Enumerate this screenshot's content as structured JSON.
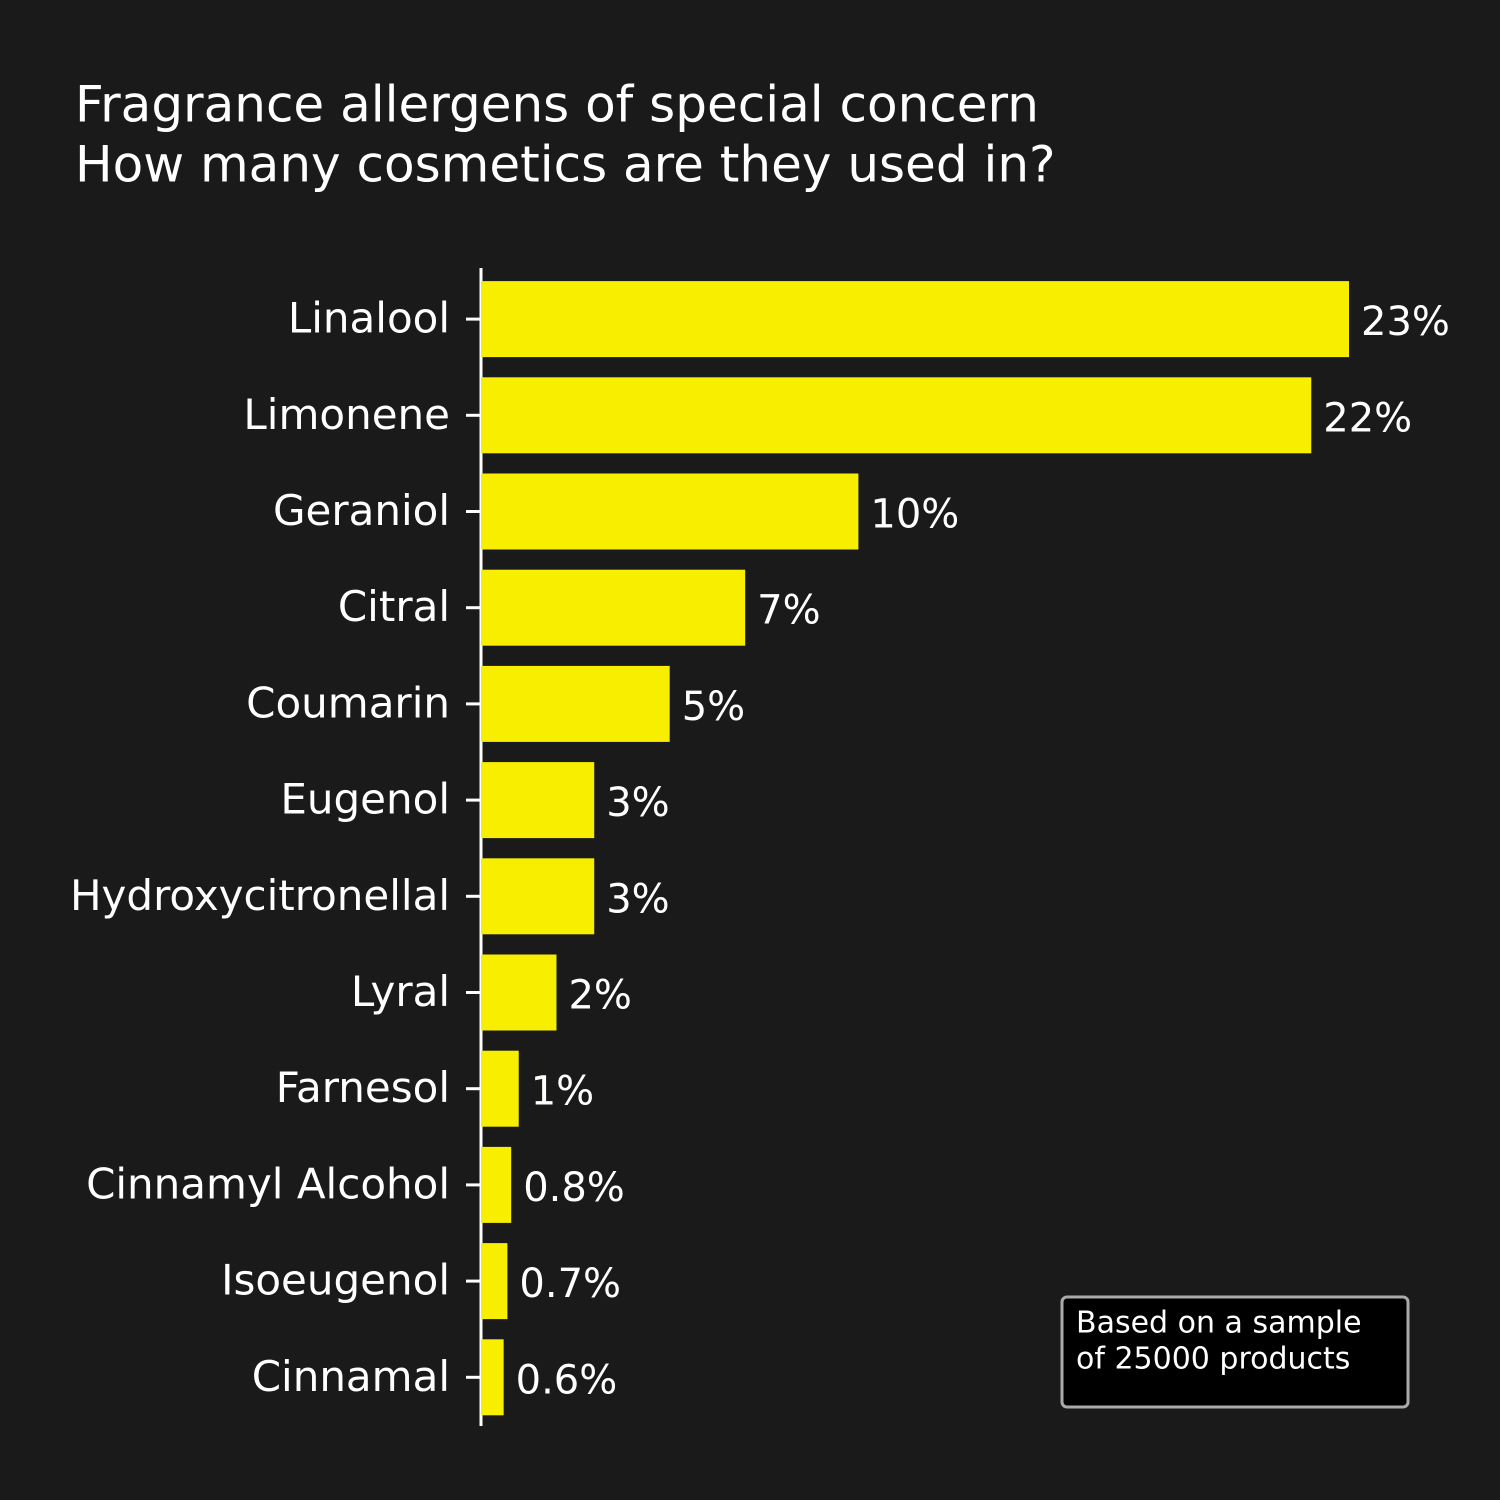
{
  "chart_data": {
    "type": "bar",
    "orientation": "horizontal",
    "title": "Fragrance allergens of special concern",
    "subtitle": "How many cosmetics are they used in?",
    "categories": [
      "Linalool",
      "Limonene",
      "Geraniol",
      "Citral",
      "Coumarin",
      "Eugenol",
      "Hydroxycitronellal",
      "Lyral",
      "Farnesol",
      "Cinnamyl Alcohol",
      "Isoeugenol",
      "Cinnamal"
    ],
    "values": [
      23,
      22,
      10,
      7,
      5,
      3,
      3,
      2,
      1,
      0.8,
      0.7,
      0.6
    ],
    "value_labels": [
      "23%",
      "22%",
      "10%",
      "7%",
      "5%",
      "3%",
      "3%",
      "2%",
      "1%",
      "0.8%",
      "0.7%",
      "0.6%"
    ],
    "color": "#f7ee00",
    "annotation": [
      "Based on a sample",
      "of 25000 products"
    ]
  }
}
